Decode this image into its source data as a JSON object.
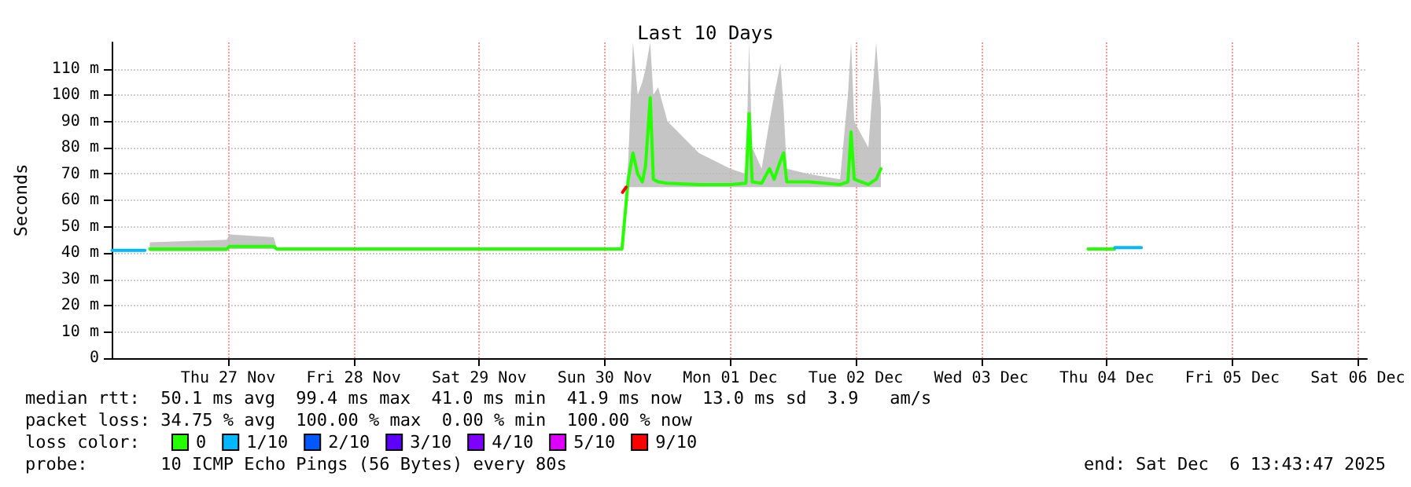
{
  "chart_data": {
    "type": "line",
    "title": "Last 10 Days",
    "ylabel": "Seconds",
    "xlim": [
      "2025-11-26T13:44",
      "2025-12-06T13:44"
    ],
    "xticks": [
      {
        "value": "2025-11-27T12:00",
        "label": "Thu 27 Nov"
      },
      {
        "value": "2025-11-28T12:00",
        "label": "Fri 28 Nov"
      },
      {
        "value": "2025-11-29T12:00",
        "label": "Sat 29 Nov"
      },
      {
        "value": "2025-11-30T12:00",
        "label": "Sun 30 Nov"
      },
      {
        "value": "2025-12-01T12:00",
        "label": "Mon 01 Dec"
      },
      {
        "value": "2025-12-02T12:00",
        "label": "Tue 02 Dec"
      },
      {
        "value": "2025-12-03T12:00",
        "label": "Wed 03 Dec"
      },
      {
        "value": "2025-12-04T12:00",
        "label": "Thu 04 Dec"
      },
      {
        "value": "2025-12-05T12:00",
        "label": "Fri 05 Dec"
      },
      {
        "value": "2025-12-06T12:00",
        "label": "Sat 06 Dec"
      }
    ],
    "ylim": [
      0,
      120
    ],
    "yticks": [
      0,
      {
        "value": 10,
        "label": "10 m"
      },
      {
        "value": 20,
        "label": "20 m"
      },
      {
        "value": 30,
        "label": "30 m"
      },
      {
        "value": 40,
        "label": "40 m"
      },
      {
        "value": 50,
        "label": "50 m"
      },
      {
        "value": 60,
        "label": "60 m"
      },
      {
        "value": 70,
        "label": "70 m"
      },
      {
        "value": 80,
        "label": "80 m"
      },
      {
        "value": 90,
        "label": "90 m"
      },
      {
        "value": 100,
        "label": "100 m"
      },
      {
        "value": 110,
        "label": "110 m"
      }
    ],
    "grid": true,
    "legend": "bottom left",
    "legend_title": "loss color:",
    "marker": "none",
    "line_style": "solid",
    "series": [
      {
        "name": "0",
        "color": "#26ff00",
        "x": [
          "2025-11-26T21:00",
          "2025-11-27T11:42",
          "2025-11-27T12:18",
          "2025-11-27T20:42",
          "2025-11-27T21:18",
          "2025-11-30T15:18",
          "2025-11-30T16:30",
          "2025-11-30T17:24",
          "2025-11-30T18:18",
          "2025-11-30T19:12",
          "2025-11-30T19:48",
          "2025-11-30T20:42",
          "2025-11-30T21:18",
          "2025-11-30T22:12",
          "2025-12-01T00:00",
          "2025-12-01T06:00",
          "2025-12-01T12:00",
          "2025-12-01T15:00",
          "2025-12-01T15:36",
          "2025-12-01T16:12",
          "2025-12-01T18:00",
          "2025-12-01T19:30",
          "2025-12-01T20:24",
          "2025-12-01T21:36",
          "2025-12-01T22:12",
          "2025-12-01T22:48",
          "2025-12-02T03:00",
          "2025-12-02T09:00",
          "2025-12-02T10:30",
          "2025-12-02T11:06",
          "2025-12-02T11:42",
          "2025-12-02T14:24",
          "2025-12-02T15:54",
          "2025-12-02T16:48",
          "2025-12-03T12:00",
          "2025-12-04T08:24",
          "2025-12-04T13:30"
        ],
        "values": [
          41.5,
          41.5,
          42.5,
          42.5,
          41.5,
          41.5,
          68,
          78,
          70,
          67,
          73,
          99,
          68,
          67,
          66.5,
          66,
          66,
          66.5,
          93,
          67,
          66.5,
          72,
          68,
          75,
          78,
          67,
          67,
          66,
          67,
          86,
          68,
          66,
          68,
          72,
          null,
          41.5,
          41.5
        ],
        "lower": [
          40.5,
          40.5,
          41.5,
          41.5,
          41,
          41,
          65,
          65,
          65,
          65,
          65,
          65,
          65,
          65,
          65,
          65,
          65,
          65,
          65,
          65,
          65,
          65,
          65,
          65,
          65,
          65,
          65,
          65,
          65,
          65,
          65,
          65,
          65,
          65,
          null,
          41,
          41
        ],
        "upper": [
          44,
          45,
          47,
          46,
          42,
          42,
          75,
          120,
          100,
          105,
          110,
          120,
          100,
          103,
          90,
          78,
          72,
          70,
          120,
          80,
          72,
          90,
          100,
          112,
          95,
          72,
          70,
          68,
          100,
          120,
          90,
          80,
          120,
          95,
          null,
          42,
          42
        ]
      },
      {
        "name": "1/10",
        "color": "#00b8ff",
        "x": [
          "2025-11-26T13:48",
          "2025-11-26T20:06",
          "2025-12-01T00:00",
          "2025-12-04T13:30",
          "2025-12-04T18:36"
        ],
        "values": [
          41,
          41,
          null,
          42,
          42
        ]
      },
      {
        "name": "2/10",
        "color": "#0059ff"
      },
      {
        "name": "3/10",
        "color": "#5e00ff"
      },
      {
        "name": "4/10",
        "color": "#7e00ff"
      },
      {
        "name": "5/10",
        "color": "#dd00ff"
      },
      {
        "name": "9/10",
        "color": "#ff0000",
        "x": [
          "2025-11-30T15:24",
          "2025-11-30T16:06"
        ],
        "values": [
          63,
          65
        ]
      }
    ],
    "annotations": [
      "median rtt:  50.1 ms avg  99.4 ms max  41.0 ms min  41.9 ms now  13.0 ms sd  3.9   am/s",
      "packet loss: 34.75 % avg  100.00 % max  0.00 % min  100.00 % now",
      "probe:       10 ICMP Echo Pings (56 Bytes) every 80s",
      "end: Sat Dec  6 13:43:47 2025"
    ]
  }
}
